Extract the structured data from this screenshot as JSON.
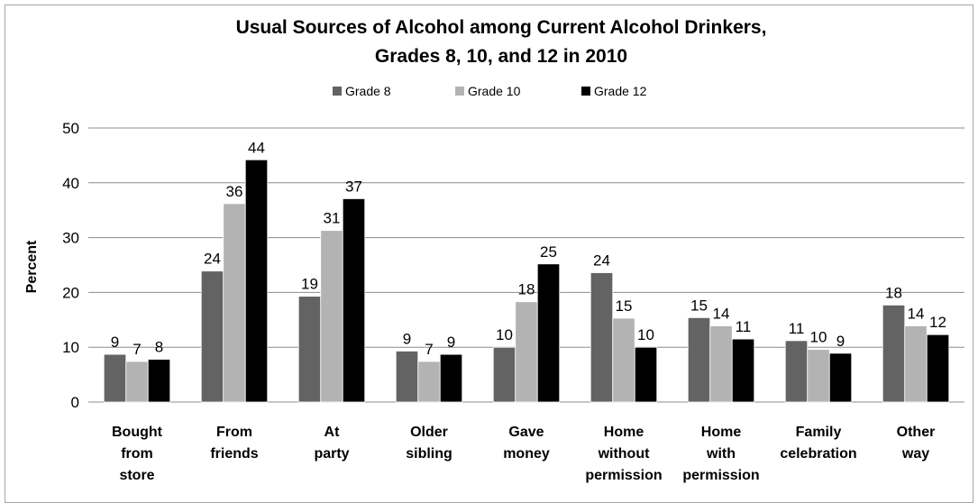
{
  "chart_data": {
    "type": "bar",
    "title_lines": [
      "Usual Sources of Alcohol among Current Alcohol Drinkers,",
      "Grades 8, 10, and 12 in 2010"
    ],
    "ylabel": "Percent",
    "xlabel": "",
    "ylim": [
      0,
      50
    ],
    "yticks": [
      0,
      10,
      20,
      30,
      40,
      50
    ],
    "grid": true,
    "legend_position": "top-center",
    "categories": [
      [
        "Bought",
        "from",
        "store"
      ],
      [
        "From",
        "friends"
      ],
      [
        "At",
        "party"
      ],
      [
        "Older",
        "sibling"
      ],
      [
        "Gave",
        "money"
      ],
      [
        "Home",
        "without",
        "permission"
      ],
      [
        "Home",
        "with",
        "permission"
      ],
      [
        "Family",
        "celebration"
      ],
      [
        "Other",
        "way"
      ]
    ],
    "series": [
      {
        "name": "Grade 8",
        "color": "#636363",
        "values": [
          8.7,
          23.9,
          19.3,
          9.3,
          10.0,
          23.6,
          15.4,
          11.2,
          17.7
        ],
        "labels": [
          "9",
          "24",
          "19",
          "9",
          "10",
          "24",
          "15",
          "11",
          "18"
        ]
      },
      {
        "name": "Grade 10",
        "color": "#b3b3b3",
        "values": [
          7.4,
          36.2,
          31.3,
          7.4,
          18.3,
          15.3,
          13.9,
          9.6,
          13.9
        ],
        "labels": [
          "7",
          "36",
          "31",
          "7",
          "18",
          "15",
          "14",
          "10",
          "14"
        ]
      },
      {
        "name": "Grade 12",
        "color": "#000000",
        "values": [
          7.8,
          44.2,
          37.1,
          8.7,
          25.2,
          10.0,
          11.5,
          8.9,
          12.3
        ],
        "labels": [
          "8",
          "44",
          "37",
          "9",
          "25",
          "10",
          "11",
          "9",
          "12"
        ]
      }
    ]
  }
}
